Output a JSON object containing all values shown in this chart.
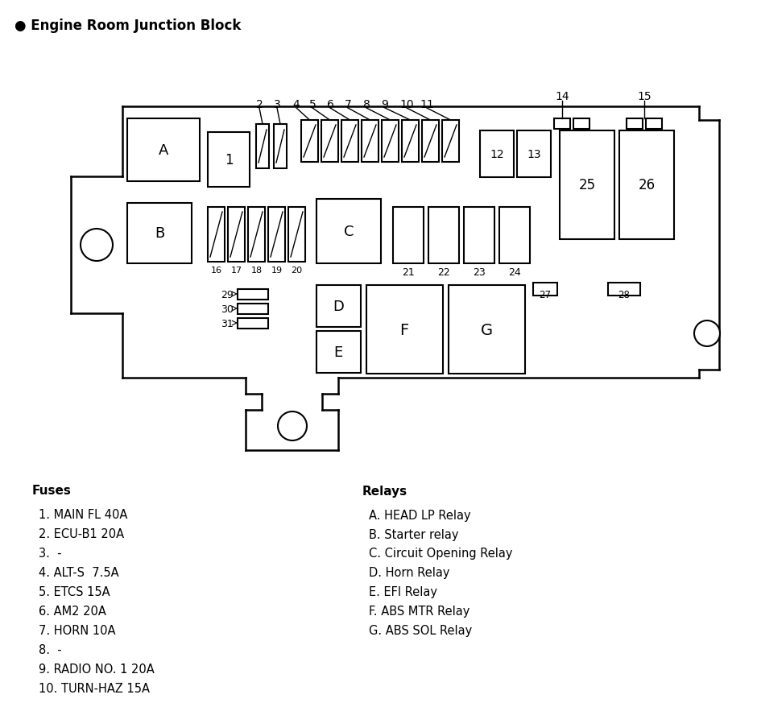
{
  "title": "● Engine Room Junction Block",
  "bg_color": "#ffffff",
  "line_color": "#000000",
  "fuses_title": "Fuses",
  "relays_title": "Relays",
  "fuses_list": [
    "1. MAIN FL 40A",
    "2. ECU-B1 20A",
    "3.  -",
    "4. ALT-S  7.5A",
    "5. ETCS 15A",
    "6. AM2 20A",
    "7. HORN 10A",
    "8.  -",
    "9. RADIO NO. 1 20A",
    "10. TURN-HAZ 15A"
  ],
  "relays_list": [
    "A. HEAD LP Relay",
    "B. Starter relay",
    "C. Circuit Opening Relay",
    "D. Horn Relay",
    "E. EFI Relay",
    "F. ABS MTR Relay",
    "G. ABS SOL Relay"
  ]
}
